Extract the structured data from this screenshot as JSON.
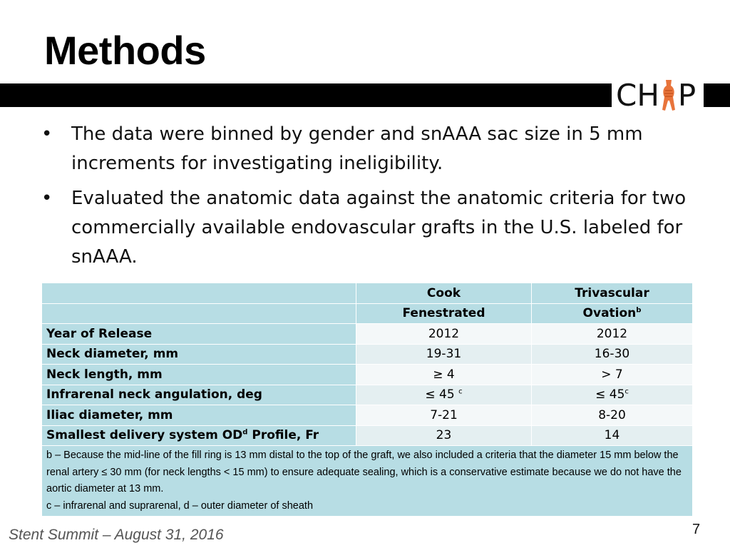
{
  "slide": {
    "title": "Methods",
    "logo": {
      "left": "CH",
      "right": "P",
      "icon": "aorta-stent-icon",
      "color": "#e8743b"
    },
    "bullets": [
      "The data were binned by gender and snAAA sac size in 5 mm increments for investigating ineligibility.",
      "Evaluated the anatomic data against the anatomic criteria for two commercially available endovascular grafts in the U.S. labeled for snAAA."
    ],
    "bullet_marker": "•"
  },
  "table": {
    "columns": [
      {
        "line1": "Cook",
        "line2": "Fenestrated",
        "sup": ""
      },
      {
        "line1": "Trivascular",
        "line2": "Ovation",
        "sup": "b"
      }
    ],
    "rows": [
      {
        "label": "Year of Release",
        "label_sup": "",
        "label_tail": "",
        "v1": "2012",
        "v1_sup": "",
        "v2": "2012",
        "v2_sup": ""
      },
      {
        "label": "Neck diameter, mm",
        "label_sup": "",
        "label_tail": "",
        "v1": "19-31",
        "v1_sup": "",
        "v2": "16-30",
        "v2_sup": ""
      },
      {
        "label": "Neck length, mm",
        "label_sup": "",
        "label_tail": "",
        "v1": "≥ 4",
        "v1_sup": "",
        "v2": "> 7",
        "v2_sup": ""
      },
      {
        "label": "Infrarenal neck angulation, deg",
        "label_sup": "",
        "label_tail": "",
        "v1": "≤ 45 ",
        "v1_sup": "c",
        "v2": "≤ 45",
        "v2_sup": "c"
      },
      {
        "label": "Iliac diameter, mm",
        "label_sup": "",
        "label_tail": "",
        "v1": "7-21",
        "v1_sup": "",
        "v2": "8-20",
        "v2_sup": ""
      },
      {
        "label": "Smallest delivery system OD",
        "label_sup": "d",
        "label_tail": " Profile, Fr",
        "v1": "23",
        "v1_sup": "",
        "v2": "14",
        "v2_sup": ""
      }
    ],
    "footnotes": [
      "b – Because the mid-line of the fill ring is 13 mm distal to the top of the graft, we also included a criteria that the diameter 15 mm below the renal artery ≤ 30 mm (for neck lengths < 15 mm) to ensure adequate sealing, which is a conservative estimate because we do not have the aortic diameter at 13 mm.",
      "c – infrarenal and suprarenal, d – outer diameter of sheath"
    ]
  },
  "footer": {
    "text": "Stent Summit – August 31, 2016",
    "page_number": "7"
  },
  "colors": {
    "header_cell": "#b7dde4",
    "row_light": "#f4f8f9",
    "row_alt": "#e4eff1",
    "rule_bar": "#000000"
  }
}
